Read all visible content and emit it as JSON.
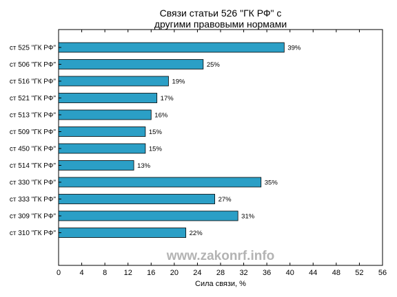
{
  "chart_data": {
    "type": "bar",
    "orientation": "horizontal",
    "title": [
      "Связи статьи 526 \"ГК РФ\" с",
      "другими правовыми нормами"
    ],
    "xlabel": "Сила связи, %",
    "ylabel": "",
    "xlim": [
      0,
      56
    ],
    "xticks": [
      0,
      4,
      8,
      12,
      16,
      20,
      24,
      28,
      32,
      36,
      40,
      44,
      48,
      52,
      56
    ],
    "categories": [
      "ст 525 \"ГК РФ\"",
      "ст 506 \"ГК РФ\"",
      "ст 516 \"ГК РФ\"",
      "ст 521 \"ГК РФ\"",
      "ст 513 \"ГК РФ\"",
      "ст 509 \"ГК РФ\"",
      "ст 450 \"ГК РФ\"",
      "ст 514 \"ГК РФ\"",
      "ст 330 \"ГК РФ\"",
      "ст 333 \"ГК РФ\"",
      "ст 309 \"ГК РФ\"",
      "ст 310 \"ГК РФ\""
    ],
    "values": [
      39,
      25,
      19,
      17,
      16,
      15,
      15,
      13,
      35,
      27,
      31,
      22
    ],
    "value_labels": [
      "39%",
      "25%",
      "19%",
      "17%",
      "16%",
      "15%",
      "15%",
      "13%",
      "35%",
      "27%",
      "31%",
      "22%"
    ],
    "bar_color": "#2b9fc6",
    "grid": false
  },
  "watermark": "www.zakonrf.info"
}
